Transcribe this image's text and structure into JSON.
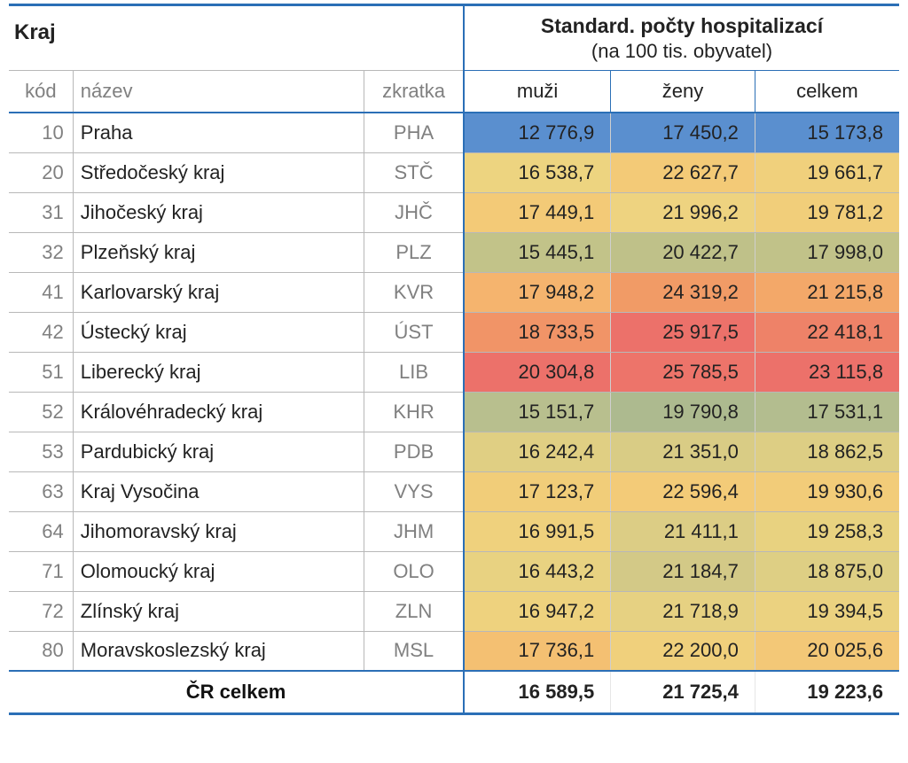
{
  "table": {
    "header": {
      "kraj": "Kraj",
      "standard_title": "Standard. počty hospitalizací",
      "standard_sub": "(na 100 tis. obyvatel)",
      "kod": "kód",
      "nazev": "název",
      "zkratka": "zkratka",
      "muzi": "muži",
      "zeny": "ženy",
      "celkem": "celkem"
    },
    "heat_palette": {
      "lowest": "#5a8fcf",
      "low": "#b8bf8e",
      "midlow": "#d4ca87",
      "mid": "#ecd682",
      "midhigh": "#f4cf7c",
      "high": "#f5b46e",
      "higher": "#f19066",
      "highest": "#ec716a"
    },
    "rows": [
      {
        "kod": "10",
        "nazev": "Praha",
        "zkr": "PHA",
        "muzi": "12 776,9",
        "zeny": "17 450,2",
        "celkem": "15 173,8",
        "c_m": "#5a8fcf",
        "c_z": "#5a8fcf",
        "c_c": "#5a8fcf"
      },
      {
        "kod": "20",
        "nazev": "Středočeský kraj",
        "zkr": "STČ",
        "muzi": "16 538,7",
        "zeny": "22 627,7",
        "celkem": "19 661,7",
        "c_m": "#edd480",
        "c_z": "#f3ca77",
        "c_c": "#f0d07c"
      },
      {
        "kod": "31",
        "nazev": "Jihočeský kraj",
        "zkr": "JHČ",
        "muzi": "17 449,1",
        "zeny": "21 996,2",
        "celkem": "19 781,2",
        "c_m": "#f3ca77",
        "c_z": "#eed380",
        "c_c": "#f1ce7a"
      },
      {
        "kod": "32",
        "nazev": "Plzeňský kraj",
        "zkr": "PLZ",
        "muzi": "15 445,1",
        "zeny": "20 422,7",
        "celkem": "17 998,0",
        "c_m": "#c2c389",
        "c_z": "#bfc189",
        "c_c": "#c1c289"
      },
      {
        "kod": "41",
        "nazev": "Karlovarský kraj",
        "zkr": "KVR",
        "muzi": "17 948,2",
        "zeny": "24 319,2",
        "celkem": "21 215,8",
        "c_m": "#f5b46e",
        "c_z": "#f19b66",
        "c_c": "#f3a869"
      },
      {
        "kod": "42",
        "nazev": "Ústecký kraj",
        "zkr": "ÚST",
        "muzi": "18 733,5",
        "zeny": "25 917,5",
        "celkem": "22 418,1",
        "c_m": "#f19467",
        "c_z": "#ec716a",
        "c_c": "#ee8268"
      },
      {
        "kod": "51",
        "nazev": "Liberecký kraj",
        "zkr": "LIB",
        "muzi": "20 304,8",
        "zeny": "25 785,5",
        "celkem": "23 115,8",
        "c_m": "#ec716a",
        "c_z": "#ed746a",
        "c_c": "#ec716a"
      },
      {
        "kod": "52",
        "nazev": "Královéhradecký kraj",
        "zkr": "KHR",
        "muzi": "15 151,7",
        "zeny": "19 790,8",
        "celkem": "17 531,1",
        "c_m": "#b8bf8e",
        "c_z": "#adba8f",
        "c_c": "#b3bd8f"
      },
      {
        "kod": "53",
        "nazev": "Pardubický kraj",
        "zkr": "PDB",
        "muzi": "16 242,4",
        "zeny": "21 351,0",
        "celkem": "18 862,5",
        "c_m": "#e0cf83",
        "c_z": "#d9cc85",
        "c_c": "#ddce84"
      },
      {
        "kod": "63",
        "nazev": "Kraj Vysočina",
        "zkr": "VYS",
        "muzi": "17 123,7",
        "zeny": "22 596,4",
        "celkem": "19 930,6",
        "c_m": "#f1cd79",
        "c_z": "#f3cb78",
        "c_c": "#f2cc79"
      },
      {
        "kod": "64",
        "nazev": "Jihomoravský kraj",
        "zkr": "JHM",
        "muzi": "16 991,5",
        "zeny": "21 411,1",
        "celkem": "19 258,3",
        "c_m": "#efd17d",
        "c_z": "#dccd85",
        "c_c": "#e8d280"
      },
      {
        "kod": "71",
        "nazev": "Olomoucký kraj",
        "zkr": "OLO",
        "muzi": "16 443,2",
        "zeny": "21 184,7",
        "celkem": "18 875,0",
        "c_m": "#e8d281",
        "c_z": "#d3c987",
        "c_c": "#decf84"
      },
      {
        "kod": "72",
        "nazev": "Zlínský kraj",
        "zkr": "ZLN",
        "muzi": "16 947,2",
        "zeny": "21 718,9",
        "celkem": "19 394,5",
        "c_m": "#eed27e",
        "c_z": "#e6d182",
        "c_c": "#ebd280"
      },
      {
        "kod": "80",
        "nazev": "Moravskoslezský kraj",
        "zkr": "MSL",
        "muzi": "17 736,1",
        "zeny": "22 200,0",
        "celkem": "20 025,6",
        "c_m": "#f4c072",
        "c_z": "#f0d07c",
        "c_c": "#f3c877"
      }
    ],
    "total": {
      "label": "ČR celkem",
      "muzi": "16 589,5",
      "zeny": "21 725,4",
      "celkem": "19 223,6"
    },
    "colors": {
      "rule_blue": "#2b6fb6",
      "rule_gray": "#b8b8b8",
      "text_gray": "#808080",
      "text_black": "#222222",
      "background": "#ffffff"
    },
    "typography": {
      "font_family": "Segoe UI / Helvetica Neue / Arial",
      "header_main_pt": 24,
      "header_sub_pt": 22,
      "body_pt": 22
    }
  }
}
